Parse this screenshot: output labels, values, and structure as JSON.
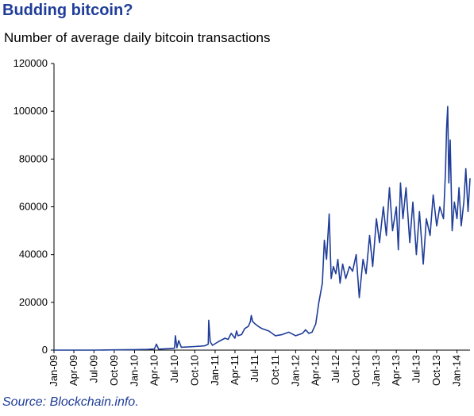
{
  "title": "Budding bitcoin?",
  "subtitle": "Number of average daily bitcoin transactions",
  "source": "Source: Blockchain.info.",
  "colors": {
    "title": "#1f3d99",
    "series": "#1f3d99",
    "axis": "#000000"
  },
  "chart_data": {
    "type": "line",
    "title": "Budding bitcoin?",
    "subtitle": "Number of average daily bitcoin transactions",
    "xlabel": "",
    "ylabel": "",
    "ylim": [
      0,
      120000
    ],
    "yticks": [
      0,
      20000,
      40000,
      60000,
      80000,
      100000,
      120000
    ],
    "ytick_labels": [
      "0",
      "20000",
      "40000",
      "60000",
      "80000",
      "100000",
      "120000"
    ],
    "xlim": [
      "2009-01-01",
      "2014-03-01"
    ],
    "xtick_labels": [
      "Jan-09",
      "Apr-09",
      "Jul-09",
      "Oct-09",
      "Jan-10",
      "Apr-10",
      "Jul-10",
      "Oct-10",
      "Jan-11",
      "Apr-11",
      "Jul-11",
      "Oct-11",
      "Jan-12",
      "Apr-12",
      "Jul-12",
      "Oct-12",
      "Jan-13",
      "Apr-13",
      "Jul-13",
      "Oct-13",
      "Jan-14"
    ],
    "xtick_dates": [
      "2009-01-01",
      "2009-04-01",
      "2009-07-01",
      "2009-10-01",
      "2010-01-01",
      "2010-04-01",
      "2010-07-01",
      "2010-10-01",
      "2011-01-01",
      "2011-04-01",
      "2011-07-01",
      "2011-10-01",
      "2012-01-01",
      "2012-04-01",
      "2012-07-01",
      "2012-10-01",
      "2013-01-01",
      "2013-04-01",
      "2013-07-01",
      "2013-10-01",
      "2014-01-01"
    ],
    "grid": false,
    "legend": "none",
    "series": [
      {
        "x": [
          "2009-01-01",
          "2009-04-01",
          "2009-07-01",
          "2009-10-01",
          "2010-01-01",
          "2010-03-01",
          "2010-04-01",
          "2010-04-10",
          "2010-04-20",
          "2010-06-01",
          "2010-07-01",
          "2010-07-05",
          "2010-07-12",
          "2010-07-20",
          "2010-08-01",
          "2010-10-01",
          "2010-11-15",
          "2010-12-01",
          "2010-12-03",
          "2010-12-10",
          "2010-12-20",
          "2011-01-15",
          "2011-02-15",
          "2011-03-01",
          "2011-03-15",
          "2011-04-01",
          "2011-04-08",
          "2011-04-15",
          "2011-05-01",
          "2011-05-15",
          "2011-06-01",
          "2011-06-10",
          "2011-06-14",
          "2011-06-20",
          "2011-07-01",
          "2011-07-15",
          "2011-08-01",
          "2011-09-01",
          "2011-10-01",
          "2011-11-01",
          "2011-12-01",
          "2012-01-01",
          "2012-02-01",
          "2012-02-15",
          "2012-03-01",
          "2012-03-15",
          "2012-04-01",
          "2012-04-15",
          "2012-05-01",
          "2012-05-10",
          "2012-05-20",
          "2012-06-01",
          "2012-06-10",
          "2012-06-20",
          "2012-07-01",
          "2012-07-10",
          "2012-07-20",
          "2012-08-01",
          "2012-08-15",
          "2012-09-01",
          "2012-09-15",
          "2012-10-01",
          "2012-10-15",
          "2012-11-01",
          "2012-11-15",
          "2012-12-01",
          "2012-12-15",
          "2013-01-01",
          "2013-01-15",
          "2013-02-01",
          "2013-02-15",
          "2013-03-01",
          "2013-03-15",
          "2013-04-01",
          "2013-04-10",
          "2013-04-20",
          "2013-05-01",
          "2013-05-15",
          "2013-06-01",
          "2013-06-15",
          "2013-07-01",
          "2013-07-15",
          "2013-08-01",
          "2013-08-15",
          "2013-09-01",
          "2013-09-15",
          "2013-10-01",
          "2013-10-15",
          "2013-11-01",
          "2013-11-10",
          "2013-11-15",
          "2013-11-20",
          "2013-11-25",
          "2013-12-01",
          "2013-12-10",
          "2013-12-20",
          "2014-01-01",
          "2014-01-10",
          "2014-01-20",
          "2014-02-01",
          "2014-02-10",
          "2014-02-20",
          "2014-03-01"
        ],
        "y": [
          0,
          0,
          0,
          100,
          200,
          300,
          500,
          2500,
          400,
          600,
          800,
          6000,
          1000,
          4000,
          1200,
          1500,
          1800,
          2500,
          12500,
          3500,
          2000,
          3500,
          5000,
          4500,
          7000,
          5000,
          8000,
          6000,
          6500,
          9000,
          10000,
          12000,
          14500,
          12000,
          11000,
          10000,
          9000,
          8000,
          6000,
          6500,
          7500,
          6000,
          7000,
          8500,
          7000,
          7500,
          11000,
          20000,
          28000,
          46000,
          38000,
          57000,
          30000,
          35000,
          32000,
          38000,
          28000,
          36000,
          30000,
          35000,
          33000,
          40000,
          22000,
          38000,
          32000,
          48000,
          35000,
          55000,
          45000,
          60000,
          48000,
          68000,
          50000,
          60000,
          42000,
          70000,
          55000,
          68000,
          45000,
          62000,
          40000,
          58000,
          36000,
          55000,
          48000,
          65000,
          52000,
          60000,
          55000,
          75000,
          93000,
          102000,
          70000,
          88000,
          50000,
          62000,
          55000,
          68000,
          52000,
          62000,
          76000,
          58000,
          72000
        ]
      }
    ]
  }
}
